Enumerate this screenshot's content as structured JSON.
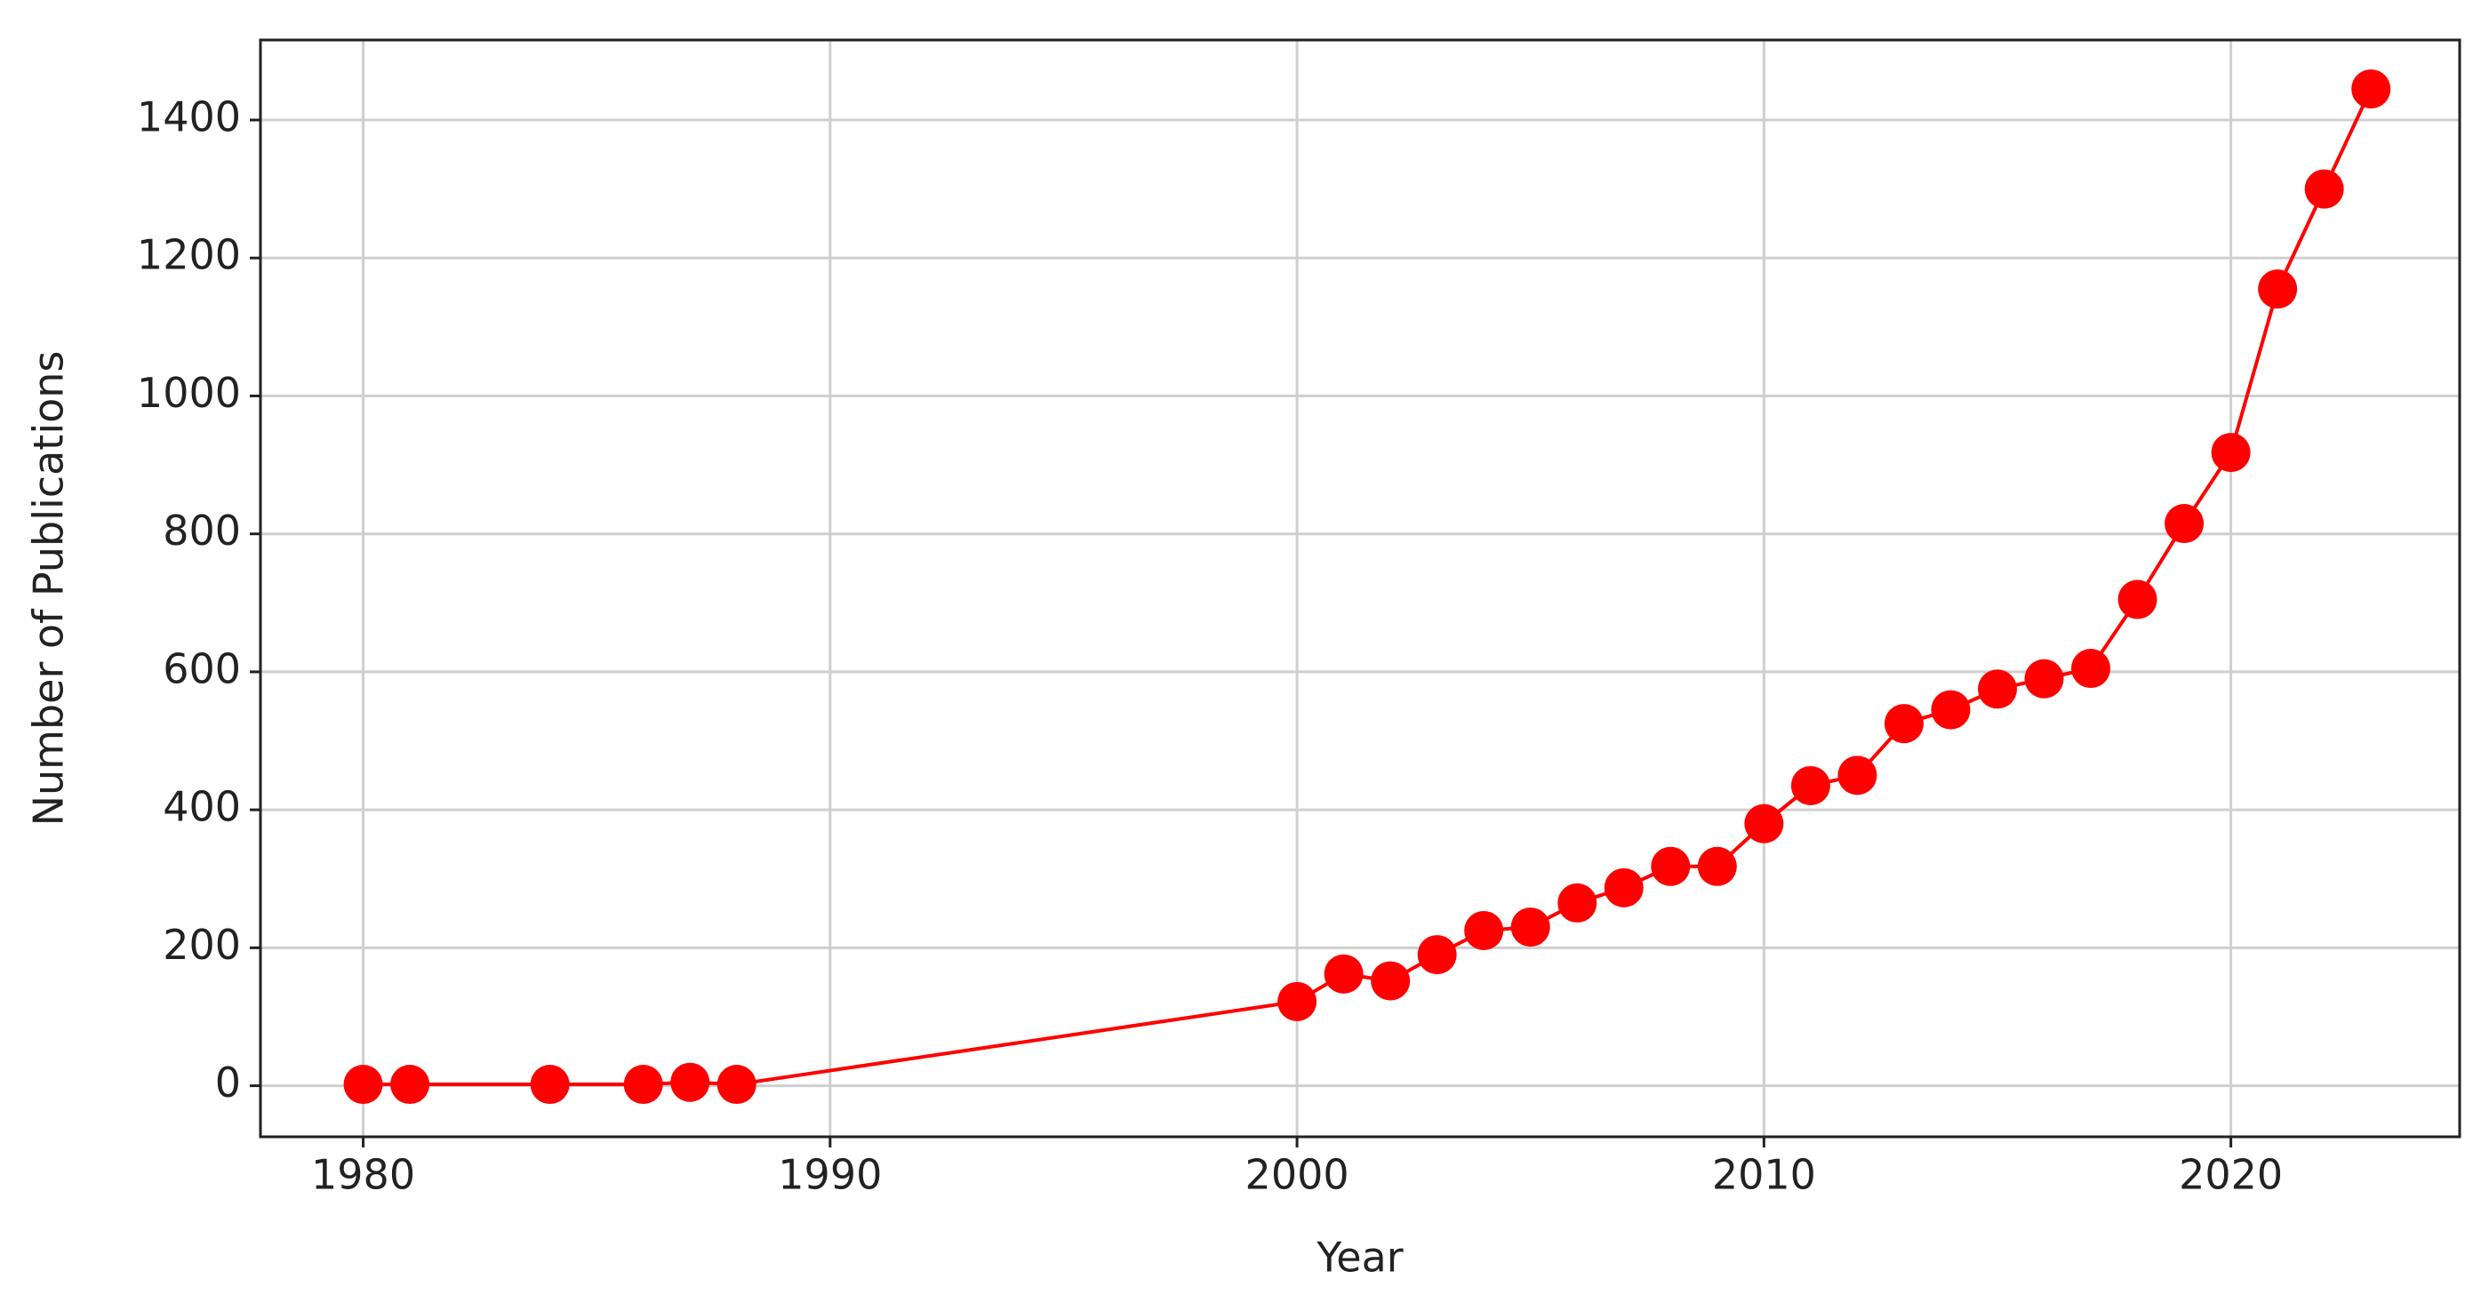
{
  "chart_data": {
    "type": "line",
    "x": [
      1980,
      1981,
      1984,
      1986,
      1987,
      1988,
      2000,
      2001,
      2002,
      2003,
      2004,
      2005,
      2006,
      2007,
      2008,
      2009,
      2010,
      2011,
      2012,
      2013,
      2014,
      2015,
      2016,
      2017,
      2018,
      2019,
      2020,
      2021,
      2022,
      2023
    ],
    "values": [
      2,
      2,
      2,
      2,
      5,
      2,
      122,
      162,
      152,
      190,
      225,
      230,
      265,
      287,
      318,
      318,
      380,
      435,
      450,
      525,
      545,
      575,
      590,
      605,
      705,
      815,
      918,
      1155,
      1300,
      1445
    ],
    "color": "#ff0000",
    "xlabel": "Year",
    "ylabel": "Number of Publications",
    "xlim": [
      1977.8,
      2024.9
    ],
    "ylim": [
      -74,
      1516
    ],
    "xticks": [
      1980,
      1990,
      2000,
      2010,
      2020
    ],
    "yticks": [
      0,
      200,
      400,
      600,
      800,
      1000,
      1200,
      1400
    ],
    "grid": true
  }
}
